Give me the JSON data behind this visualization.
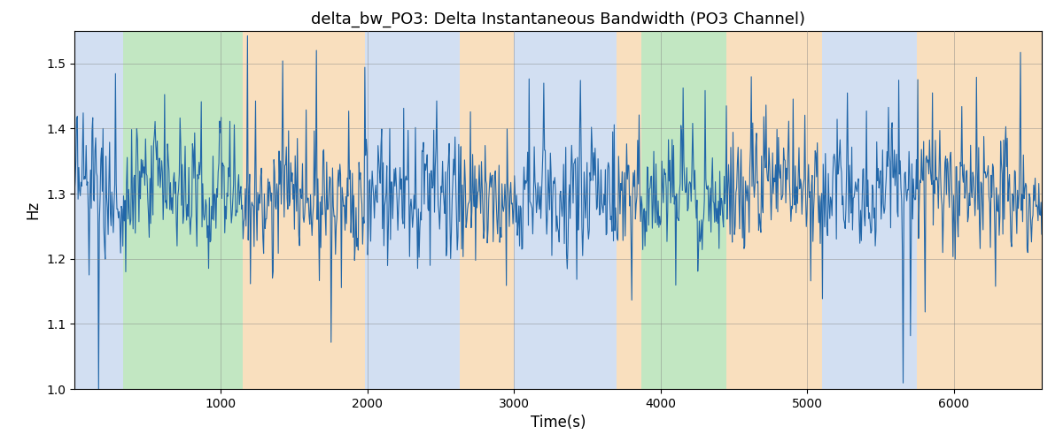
{
  "title": "delta_bw_PO3: Delta Instantaneous Bandwidth (PO3 Channel)",
  "xlabel": "Time(s)",
  "ylabel": "Hz",
  "xlim": [
    0,
    6600
  ],
  "ylim": [
    1.0,
    1.55
  ],
  "yticks": [
    1.0,
    1.1,
    1.2,
    1.3,
    1.4,
    1.5
  ],
  "xticks": [
    1000,
    2000,
    3000,
    4000,
    5000,
    6000
  ],
  "line_color": "#2166a8",
  "line_width": 0.8,
  "bg_bands": [
    {
      "xmin": 0,
      "xmax": 330,
      "color": "#aec6e8",
      "alpha": 0.55
    },
    {
      "xmin": 330,
      "xmax": 1150,
      "color": "#90d490",
      "alpha": 0.55
    },
    {
      "xmin": 1150,
      "xmax": 1980,
      "color": "#f5c68a",
      "alpha": 0.55
    },
    {
      "xmin": 1980,
      "xmax": 2630,
      "color": "#aec6e8",
      "alpha": 0.55
    },
    {
      "xmin": 2630,
      "xmax": 3000,
      "color": "#f5c68a",
      "alpha": 0.55
    },
    {
      "xmin": 3000,
      "xmax": 3700,
      "color": "#aec6e8",
      "alpha": 0.55
    },
    {
      "xmin": 3700,
      "xmax": 3870,
      "color": "#f5c68a",
      "alpha": 0.55
    },
    {
      "xmin": 3870,
      "xmax": 4450,
      "color": "#90d490",
      "alpha": 0.55
    },
    {
      "xmin": 4450,
      "xmax": 5100,
      "color": "#f5c68a",
      "alpha": 0.55
    },
    {
      "xmin": 5100,
      "xmax": 5750,
      "color": "#aec6e8",
      "alpha": 0.55
    },
    {
      "xmin": 5750,
      "xmax": 6600,
      "color": "#f5c68a",
      "alpha": 0.55
    }
  ],
  "figsize": [
    12.0,
    5.0
  ],
  "dpi": 100
}
